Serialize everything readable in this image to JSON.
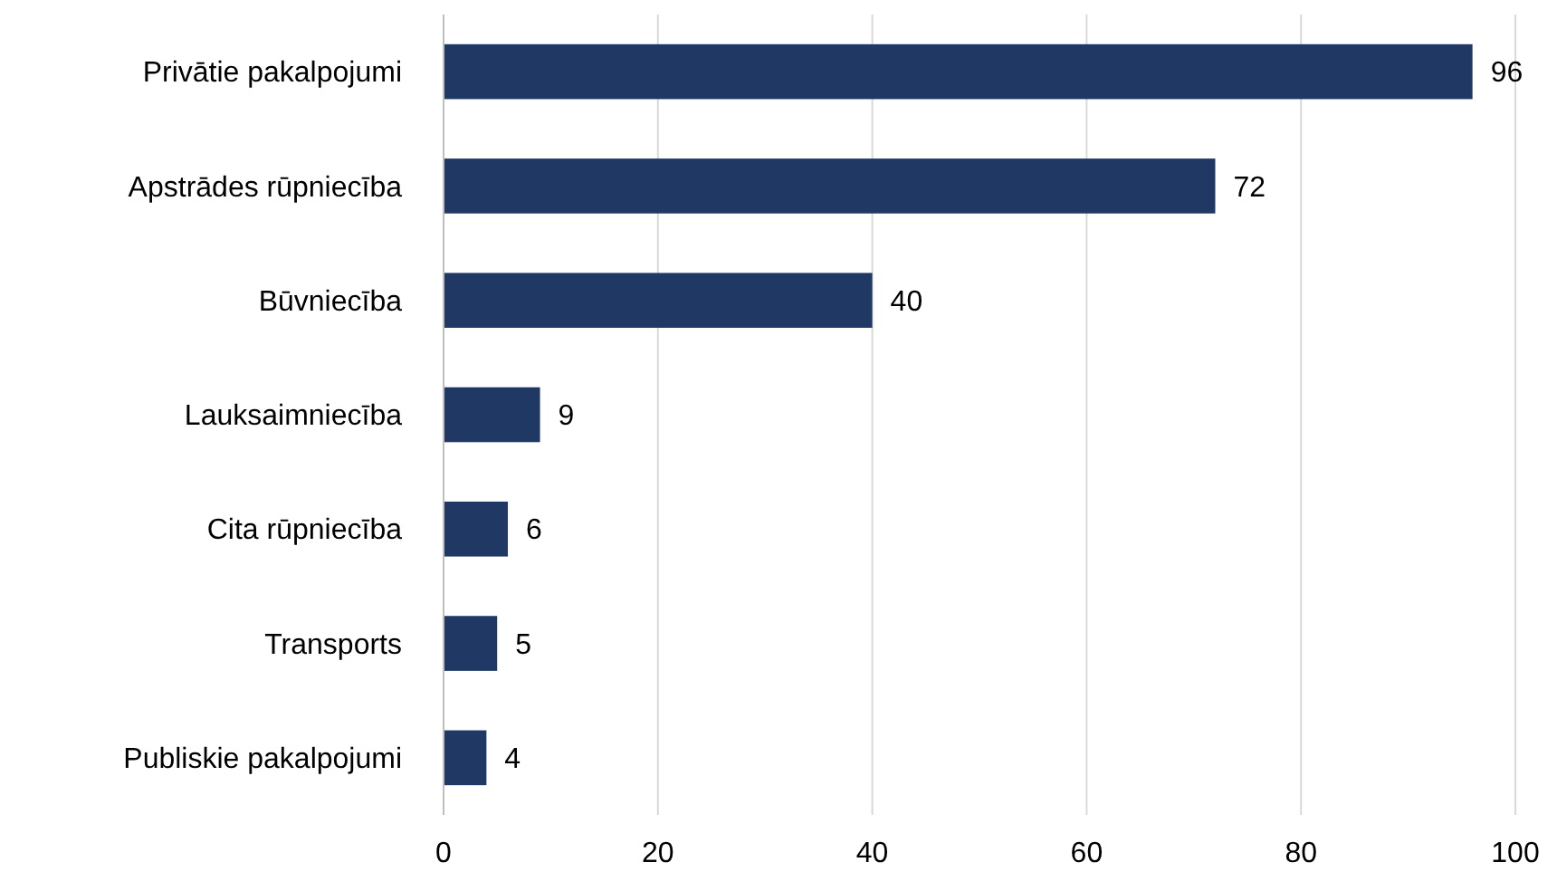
{
  "chart_data": {
    "type": "bar",
    "orientation": "horizontal",
    "categories": [
      "Privātie pakalpojumi",
      "Apstrādes rūpniecība",
      "Būvniecība",
      "Lauksaimniecība",
      "Cita rūpniecība",
      "Transports",
      "Publiskie pakalpojumi"
    ],
    "values": [
      96,
      72,
      40,
      9,
      6,
      5,
      4
    ],
    "color": "#203864",
    "xlim": [
      0,
      100
    ],
    "xticks": [
      0,
      20,
      40,
      60,
      80,
      100
    ],
    "grid": "x",
    "data_labels": true
  }
}
